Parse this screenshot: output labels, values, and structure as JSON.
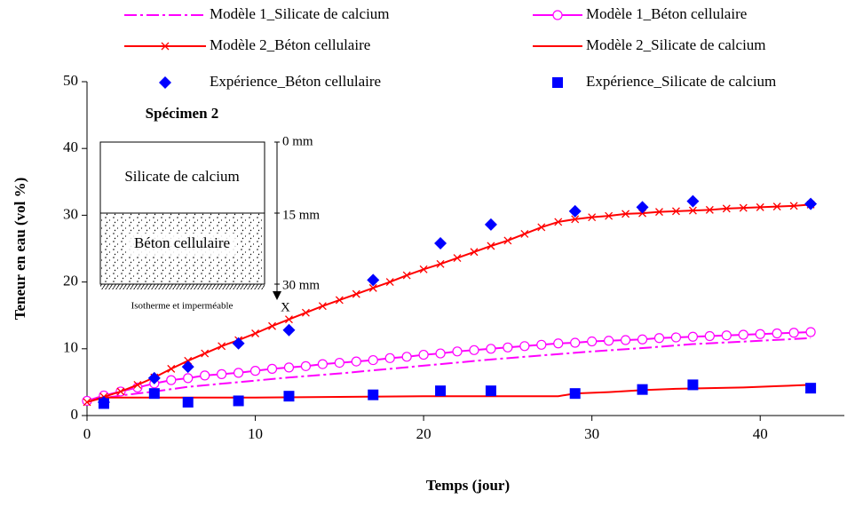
{
  "chart_data": {
    "type": "line",
    "xlabel": "Temps (jour)",
    "ylabel": "Teneur en eau (vol %)",
    "xlim": [
      0,
      45
    ],
    "xticks": [
      0,
      10,
      20,
      30,
      40
    ],
    "ylim": [
      0,
      50
    ],
    "yticks": [
      0,
      10,
      20,
      30,
      40,
      50
    ],
    "series": [
      {
        "name": "Modèle 1_Silicate de calcium",
        "color": "#ff00ff",
        "dash": "dashdot",
        "marker": "none",
        "line": true,
        "x": [
          0,
          2,
          4,
          6,
          9,
          12,
          15,
          18,
          21,
          24,
          27,
          30,
          33,
          36,
          40,
          43
        ],
        "values": [
          2.2,
          3.0,
          3.6,
          4.3,
          5.0,
          5.7,
          6.3,
          7.0,
          7.7,
          8.4,
          9.0,
          9.6,
          10.1,
          10.7,
          11.2,
          11.6
        ]
      },
      {
        "name": "Modèle 1_Béton cellulaire",
        "color": "#ff00ff",
        "dash": "solid",
        "marker": "circle",
        "line": true,
        "x": [
          0,
          1,
          2,
          3,
          4,
          5,
          6,
          7,
          8,
          9,
          10,
          11,
          12,
          13,
          14,
          15,
          16,
          17,
          18,
          19,
          20,
          21,
          22,
          23,
          24,
          25,
          26,
          27,
          28,
          29,
          30,
          31,
          32,
          33,
          34,
          35,
          36,
          37,
          38,
          39,
          40,
          41,
          42,
          43
        ],
        "values": [
          2.2,
          3.0,
          3.6,
          4.2,
          4.8,
          5.3,
          5.6,
          6.0,
          6.2,
          6.4,
          6.7,
          7.0,
          7.2,
          7.4,
          7.7,
          7.9,
          8.1,
          8.3,
          8.6,
          8.8,
          9.1,
          9.3,
          9.6,
          9.8,
          10.0,
          10.2,
          10.4,
          10.6,
          10.8,
          10.9,
          11.1,
          11.2,
          11.3,
          11.4,
          11.6,
          11.7,
          11.8,
          11.9,
          12.0,
          12.1,
          12.2,
          12.3,
          12.4,
          12.5
        ]
      },
      {
        "name": "Modèle 2_Béton cellulaire",
        "color": "#ff0000",
        "dash": "solid",
        "marker": "x",
        "line": true,
        "x": [
          0,
          1,
          2,
          3,
          4,
          5,
          6,
          7,
          8,
          9,
          10,
          11,
          12,
          13,
          14,
          15,
          16,
          17,
          18,
          19,
          20,
          21,
          22,
          23,
          24,
          25,
          26,
          27,
          28,
          29,
          30,
          31,
          32,
          33,
          34,
          35,
          36,
          37,
          38,
          39,
          40,
          41,
          42,
          43
        ],
        "values": [
          2.0,
          2.8,
          3.6,
          4.6,
          5.7,
          7.0,
          8.2,
          9.3,
          10.4,
          11.3,
          12.3,
          13.4,
          14.4,
          15.4,
          16.4,
          17.3,
          18.2,
          19.1,
          20.0,
          21.0,
          21.9,
          22.7,
          23.6,
          24.5,
          25.4,
          26.2,
          27.2,
          28.2,
          29.0,
          29.4,
          29.7,
          29.9,
          30.2,
          30.3,
          30.5,
          30.6,
          30.7,
          30.8,
          31.0,
          31.1,
          31.2,
          31.3,
          31.4,
          31.6
        ]
      },
      {
        "name": "Modèle 2_Silicate de calcium",
        "color": "#ff0000",
        "dash": "solid",
        "marker": "none",
        "line": true,
        "x": [
          0,
          1,
          5,
          10,
          15,
          20,
          25,
          28,
          29,
          31,
          33,
          35,
          37,
          39,
          41,
          43
        ],
        "values": [
          2.0,
          2.7,
          2.7,
          2.7,
          2.8,
          2.9,
          2.9,
          2.9,
          3.3,
          3.5,
          3.8,
          4.0,
          4.1,
          4.2,
          4.4,
          4.6
        ]
      },
      {
        "name": "Expérience_Béton cellulaire",
        "color": "#0000ff",
        "dash": "none",
        "marker": "diamond",
        "line": false,
        "x": [
          1,
          4,
          6,
          9,
          12,
          17,
          21,
          24,
          29,
          33,
          36,
          43
        ],
        "values": [
          2.0,
          5.6,
          7.3,
          10.8,
          12.8,
          20.3,
          25.8,
          28.6,
          30.6,
          31.2,
          32.1,
          31.7
        ]
      },
      {
        "name": "Expérience_Silicate de calcium",
        "color": "#0000ff",
        "dash": "none",
        "marker": "square",
        "line": false,
        "x": [
          1,
          4,
          6,
          9,
          12,
          17,
          21,
          24,
          29,
          33,
          36,
          43
        ],
        "values": [
          1.8,
          3.3,
          2.0,
          2.2,
          2.9,
          3.1,
          3.7,
          3.7,
          3.3,
          3.9,
          4.6,
          4.1
        ]
      }
    ],
    "inset": {
      "title": "Spécimen 2",
      "top_layer": "Silicate de calcium",
      "bottom_layer": "Béton cellulaire",
      "depth_top": "0 mm",
      "depth_middle": "15 mm",
      "depth_bottom": "30 mm",
      "axis": "X",
      "boundary": "Isotherme et imperméable"
    }
  }
}
